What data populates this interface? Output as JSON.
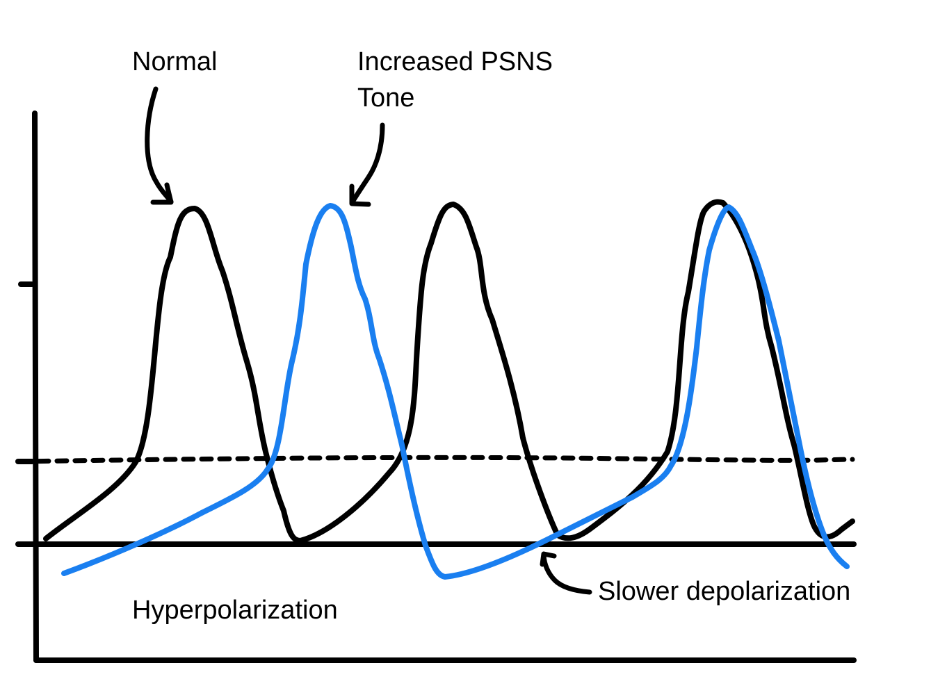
{
  "labels": {
    "normal": "Normal",
    "psns_line1": "Increased PSNS",
    "psns_line2": "Tone",
    "hyperpolarization": "Hyperpolarization",
    "slower_depolarization": "Slower depolarization"
  },
  "colors": {
    "ink": "#000000",
    "psns_trace": "#1a7ff0",
    "background": "#ffffff"
  },
  "traces": {
    "normal_color": "ink",
    "psns_color": "psns_trace",
    "threshold_style": "dashed"
  }
}
